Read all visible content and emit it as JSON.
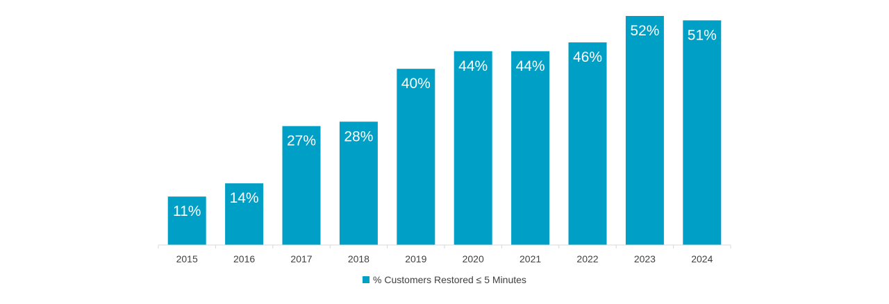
{
  "chart_data": {
    "type": "bar",
    "categories": [
      "2015",
      "2016",
      "2017",
      "2018",
      "2019",
      "2020",
      "2021",
      "2022",
      "2023",
      "2024"
    ],
    "series": [
      {
        "name": "% Customers Restored ≤ 5 Minutes",
        "values": [
          11,
          14,
          27,
          28,
          40,
          44,
          44,
          46,
          52,
          51
        ],
        "data_labels": [
          "11%",
          "14%",
          "27%",
          "28%",
          "40%",
          "44%",
          "44%",
          "46%",
          "52%",
          "51%"
        ],
        "color": "#00A0C6"
      }
    ],
    "ylim": [
      0,
      54
    ],
    "grid": false,
    "legend_position": "bottom"
  }
}
